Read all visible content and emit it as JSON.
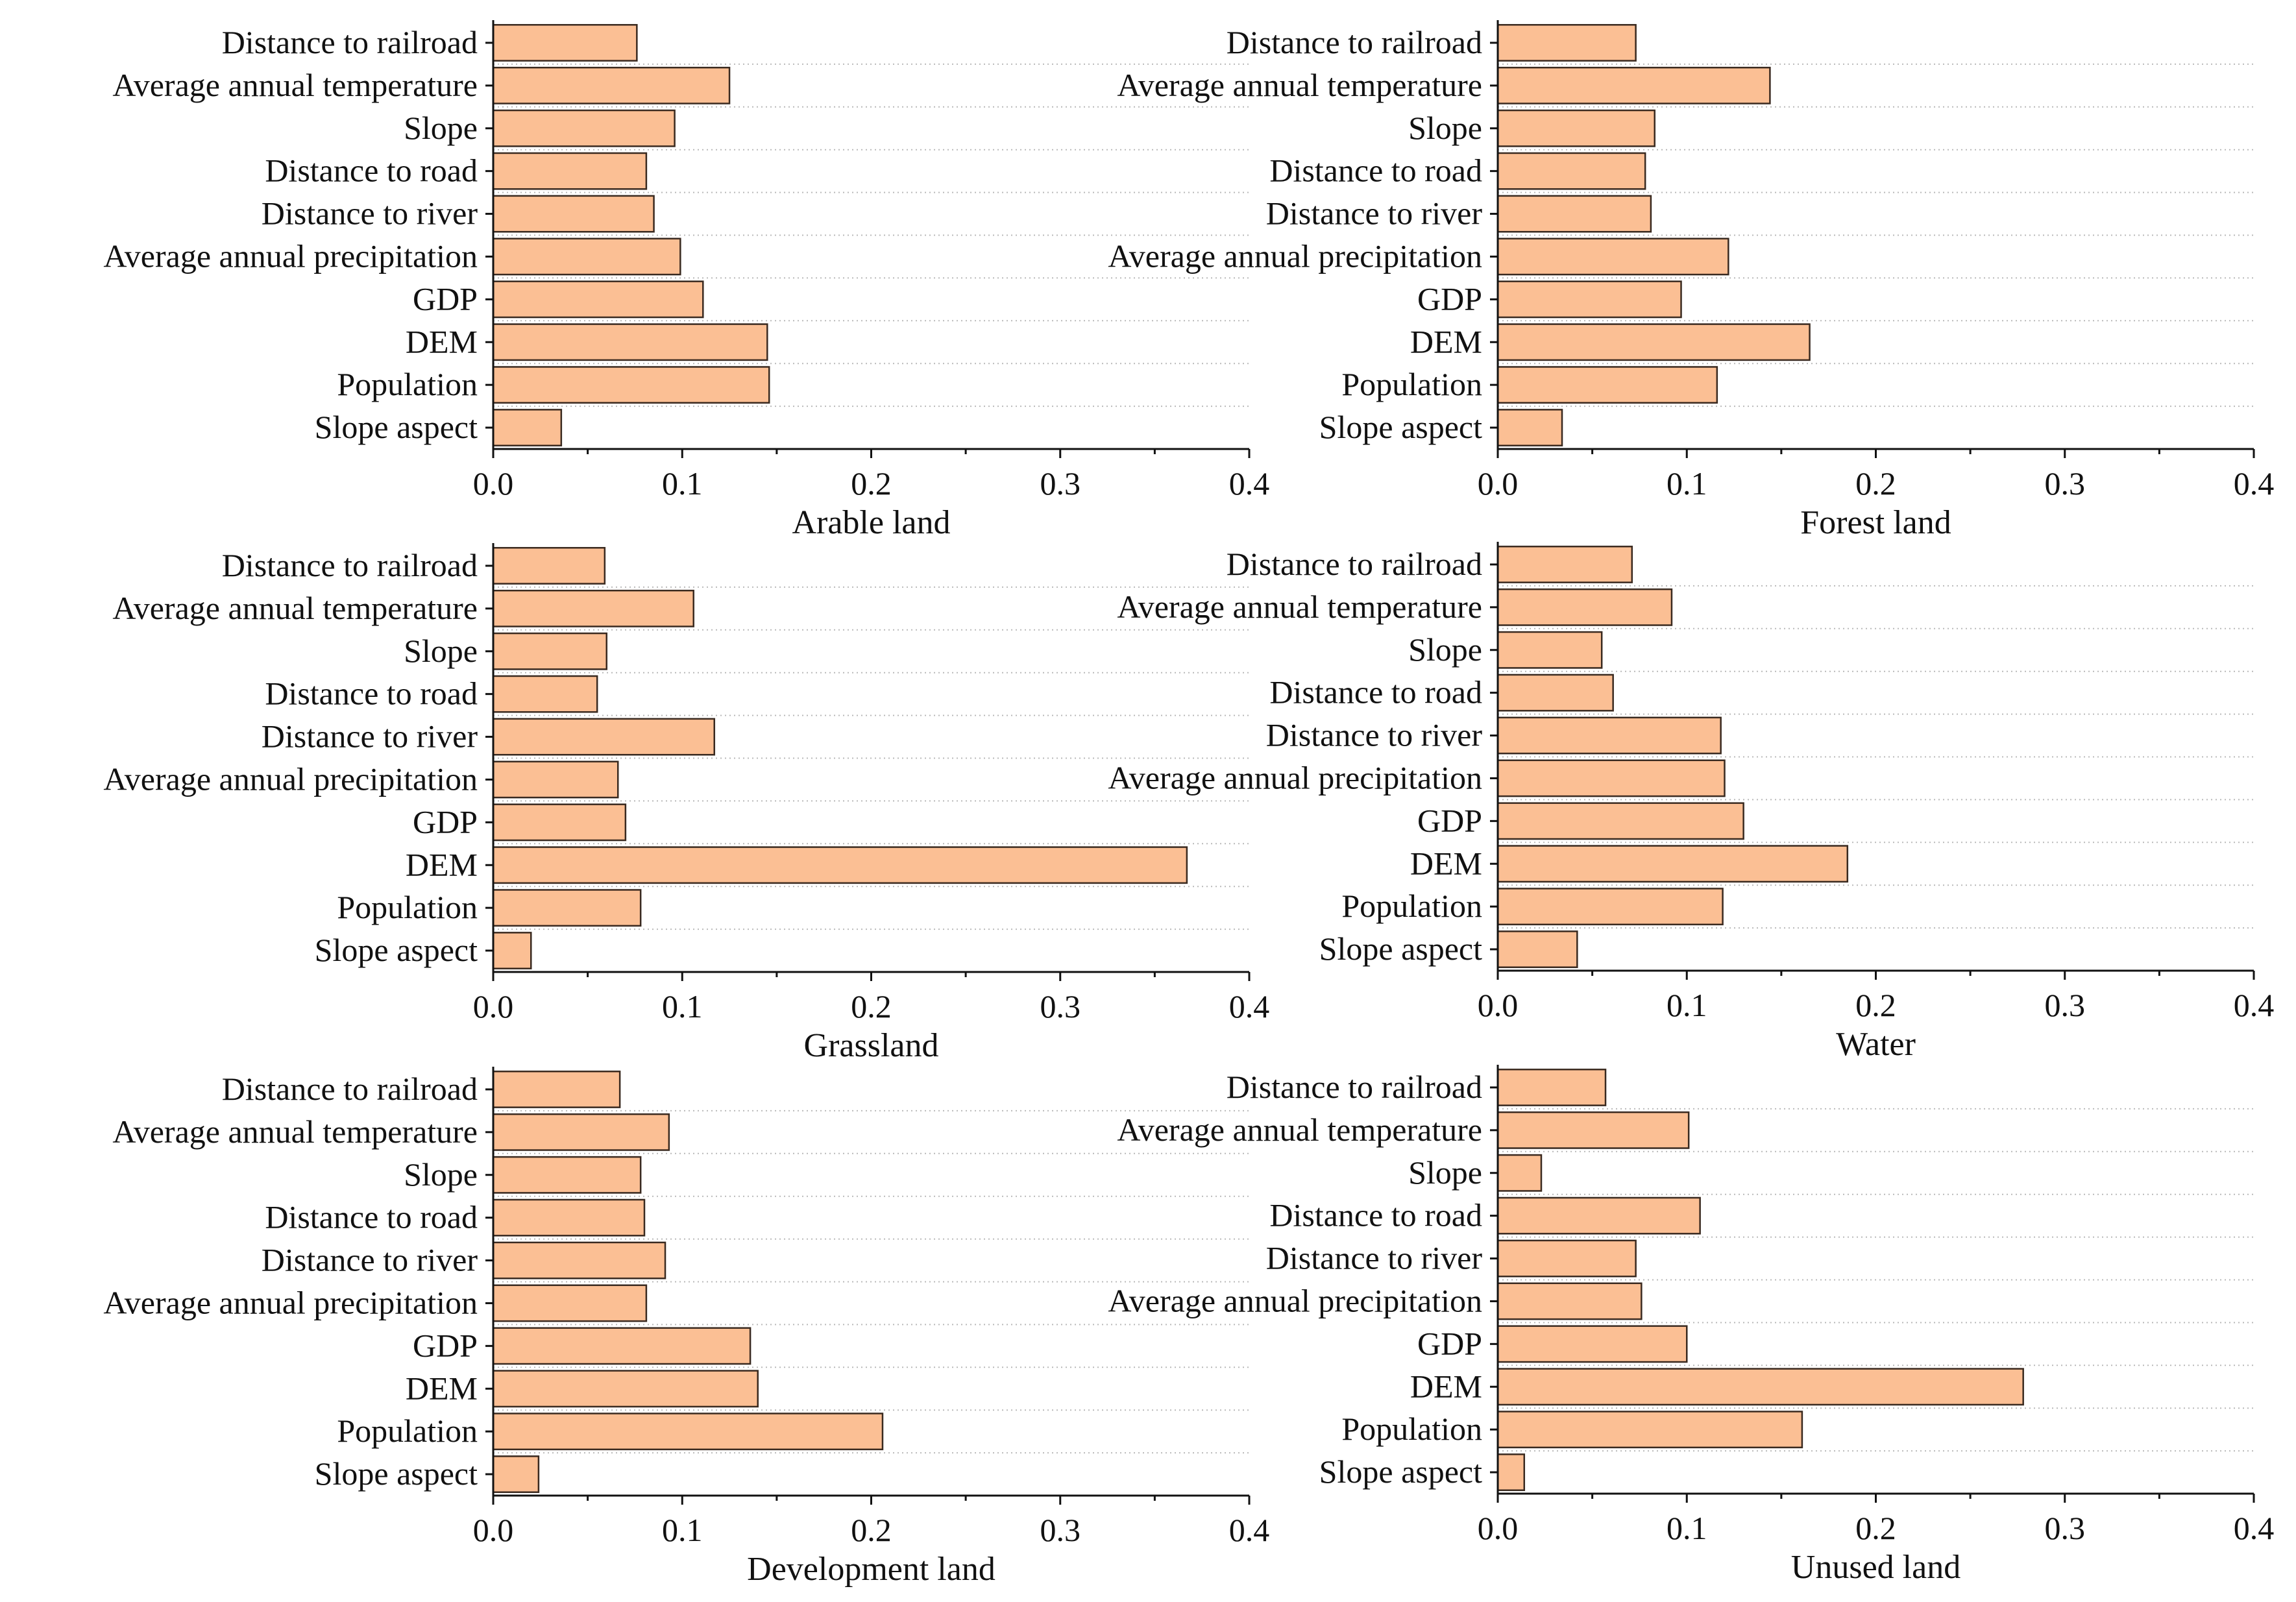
{
  "chart_data": [
    {
      "type": "bar",
      "orientation": "horizontal",
      "title": "Arable land",
      "xlabel": "Arable land",
      "ylabel": "",
      "categories": [
        "Distance to railroad",
        "Average annual temperature",
        "Slope",
        "Distance to road",
        "Distance to river",
        "Average annual precipitation",
        "GDP",
        "DEM",
        "Population",
        "Slope aspect"
      ],
      "values": [
        0.076,
        0.125,
        0.096,
        0.081,
        0.085,
        0.099,
        0.111,
        0.145,
        0.146,
        0.036
      ],
      "xlim": [
        0,
        0.4
      ],
      "xticks": [
        "0.0",
        "0.1",
        "0.2",
        "0.3",
        "0.4"
      ],
      "bar_color": "#fbbf94",
      "grid": "dotted horizontal"
    },
    {
      "type": "bar",
      "orientation": "horizontal",
      "title": "Forest land",
      "xlabel": "Forest land",
      "ylabel": "",
      "categories": [
        "Distance to railroad",
        "Average annual temperature",
        "Slope",
        "Distance to road",
        "Distance to river",
        "Average annual precipitation",
        "GDP",
        "DEM",
        "Population",
        "Slope aspect"
      ],
      "values": [
        0.073,
        0.144,
        0.083,
        0.078,
        0.081,
        0.122,
        0.097,
        0.165,
        0.116,
        0.034
      ],
      "xlim": [
        0,
        0.4
      ],
      "xticks": [
        "0.0",
        "0.1",
        "0.2",
        "0.3",
        "0.4"
      ],
      "bar_color": "#fbbf94",
      "grid": "dotted horizontal"
    },
    {
      "type": "bar",
      "orientation": "horizontal",
      "title": "Grassland",
      "xlabel": "Grassland",
      "ylabel": "",
      "categories": [
        "Distance to railroad",
        "Average annual temperature",
        "Slope",
        "Distance to road",
        "Distance to river",
        "Average annual precipitation",
        "GDP",
        "DEM",
        "Population",
        "Slope aspect"
      ],
      "values": [
        0.059,
        0.106,
        0.06,
        0.055,
        0.117,
        0.066,
        0.07,
        0.367,
        0.078,
        0.02
      ],
      "xlim": [
        0,
        0.4
      ],
      "xticks": [
        "0.0",
        "0.1",
        "0.2",
        "0.3",
        "0.4"
      ],
      "bar_color": "#fbbf94",
      "grid": "dotted horizontal"
    },
    {
      "type": "bar",
      "orientation": "horizontal",
      "title": "Water",
      "xlabel": "Water",
      "ylabel": "",
      "categories": [
        "Distance to railroad",
        "Average annual temperature",
        "Slope",
        "Distance to road",
        "Distance to river",
        "Average annual precipitation",
        "GDP",
        "DEM",
        "Population",
        "Slope aspect"
      ],
      "values": [
        0.071,
        0.092,
        0.055,
        0.061,
        0.118,
        0.12,
        0.13,
        0.185,
        0.119,
        0.042
      ],
      "xlim": [
        0,
        0.4
      ],
      "xticks": [
        "0.0",
        "0.1",
        "0.2",
        "0.3",
        "0.4"
      ],
      "bar_color": "#fbbf94",
      "grid": "dotted horizontal"
    },
    {
      "type": "bar",
      "orientation": "horizontal",
      "title": "Development land",
      "xlabel": "Development land",
      "ylabel": "",
      "categories": [
        "Distance to railroad",
        "Average annual temperature",
        "Slope",
        "Distance to road",
        "Distance to river",
        "Average annual precipitation",
        "GDP",
        "DEM",
        "Population",
        "Slope aspect"
      ],
      "values": [
        0.067,
        0.093,
        0.078,
        0.08,
        0.091,
        0.081,
        0.136,
        0.14,
        0.206,
        0.024
      ],
      "xlim": [
        0,
        0.4
      ],
      "xticks": [
        "0.0",
        "0.1",
        "0.2",
        "0.3",
        "0.4"
      ],
      "bar_color": "#fbbf94",
      "grid": "dotted horizontal"
    },
    {
      "type": "bar",
      "orientation": "horizontal",
      "title": "Unused land",
      "xlabel": "Unused land",
      "ylabel": "",
      "categories": [
        "Distance to railroad",
        "Average annual temperature",
        "Slope",
        "Distance to road",
        "Distance to river",
        "Average annual precipitation",
        "GDP",
        "DEM",
        "Population",
        "Slope aspect"
      ],
      "values": [
        0.057,
        0.101,
        0.023,
        0.107,
        0.073,
        0.076,
        0.1,
        0.278,
        0.161,
        0.014
      ],
      "xlim": [
        0,
        0.4
      ],
      "xticks": [
        "0.0",
        "0.1",
        "0.2",
        "0.3",
        "0.4"
      ],
      "bar_color": "#fbbf94",
      "grid": "dotted horizontal"
    }
  ]
}
